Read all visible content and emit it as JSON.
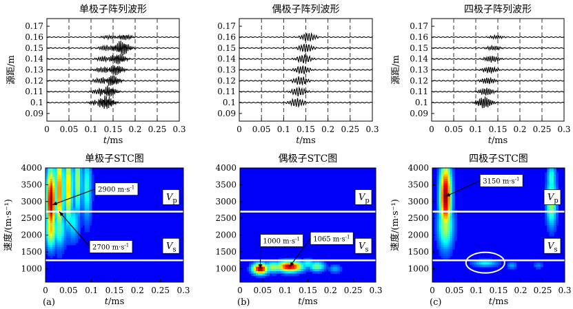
{
  "chart_data": [
    {
      "panel": "top-left",
      "type": "line",
      "title": "单极子阵列波形",
      "xlabel": "t/ms",
      "ylabel": "源距/m",
      "xlim": [
        0,
        0.3
      ],
      "ylim": [
        0.083,
        0.177
      ],
      "x_ticks": [
        "0",
        "0.05",
        "0.1",
        "0.15",
        "0.2",
        "0.25",
        "0.3"
      ],
      "y_ticks": [
        "0.09",
        "0.1",
        "0.11",
        "0.12",
        "0.13",
        "0.14",
        "0.15",
        "0.16",
        "0.17"
      ],
      "grid_x": [
        0.05,
        0.1,
        0.15,
        0.2,
        0.25
      ],
      "series": [
        {
          "offset": 0.1,
          "arrivals": [
            {
              "t": 0.112,
              "a": 0.002,
              "f": 22
            },
            {
              "t": 0.134,
              "a": 0.0065,
              "f": 30
            }
          ]
        },
        {
          "offset": 0.11,
          "arrivals": [
            {
              "t": 0.118,
              "a": 0.0025,
              "f": 22
            },
            {
              "t": 0.14,
              "a": 0.005,
              "f": 28
            }
          ]
        },
        {
          "offset": 0.12,
          "arrivals": [
            {
              "t": 0.122,
              "a": 0.0025,
              "f": 22
            },
            {
              "t": 0.148,
              "a": 0.005,
              "f": 28
            }
          ]
        },
        {
          "offset": 0.13,
          "arrivals": [
            {
              "t": 0.126,
              "a": 0.0025,
              "f": 22
            },
            {
              "t": 0.156,
              "a": 0.005,
              "f": 28
            }
          ]
        },
        {
          "offset": 0.14,
          "arrivals": [
            {
              "t": 0.13,
              "a": 0.0025,
              "f": 22
            },
            {
              "t": 0.162,
              "a": 0.005,
              "f": 28
            }
          ]
        },
        {
          "offset": 0.15,
          "arrivals": [
            {
              "t": 0.135,
              "a": 0.0025,
              "f": 22
            },
            {
              "t": 0.17,
              "a": 0.007,
              "f": 28
            }
          ]
        },
        {
          "offset": 0.16,
          "arrivals": [
            {
              "t": 0.14,
              "a": 0.0015,
              "f": 22
            },
            {
              "t": 0.176,
              "a": 0.0025,
              "f": 26
            }
          ]
        }
      ]
    },
    {
      "panel": "top-middle",
      "type": "line",
      "title": "偶极子阵列波形",
      "xlabel": "t/ms",
      "ylabel": "",
      "xlim": [
        0,
        0.3
      ],
      "ylim": [
        0.083,
        0.177
      ],
      "x_ticks": [
        "0",
        "0.05",
        "0.1",
        "0.15",
        "0.2",
        "0.25",
        "0.3"
      ],
      "y_ticks": [
        "0.09",
        "0.1",
        "0.11",
        "0.12",
        "0.13",
        "0.14",
        "0.15",
        "0.16",
        "0.17"
      ],
      "grid_x": [
        0.05,
        0.1,
        0.15,
        0.2,
        0.25
      ],
      "series": [
        {
          "offset": 0.1,
          "arrivals": [
            {
              "t": 0.13,
              "a": 0.004,
              "f": 18
            }
          ]
        },
        {
          "offset": 0.11,
          "arrivals": [
            {
              "t": 0.134,
              "a": 0.004,
              "f": 18
            }
          ]
        },
        {
          "offset": 0.12,
          "arrivals": [
            {
              "t": 0.138,
              "a": 0.004,
              "f": 18
            }
          ]
        },
        {
          "offset": 0.13,
          "arrivals": [
            {
              "t": 0.142,
              "a": 0.004,
              "f": 18
            }
          ]
        },
        {
          "offset": 0.14,
          "arrivals": [
            {
              "t": 0.146,
              "a": 0.004,
              "f": 18
            }
          ]
        },
        {
          "offset": 0.15,
          "arrivals": [
            {
              "t": 0.15,
              "a": 0.004,
              "f": 18
            }
          ]
        },
        {
          "offset": 0.16,
          "arrivals": [
            {
              "t": 0.156,
              "a": 0.004,
              "f": 18
            }
          ]
        }
      ]
    },
    {
      "panel": "top-right",
      "type": "line",
      "title": "四极子阵列波形",
      "xlabel": "t/ms",
      "ylabel": "源距/m",
      "xlim": [
        0,
        0.3
      ],
      "ylim": [
        0.083,
        0.177
      ],
      "x_ticks": [
        "0",
        "0.05",
        "0.1",
        "0.15",
        "0.2",
        "0.25",
        "0.3"
      ],
      "y_ticks": [
        "0.09",
        "0.1",
        "0.11",
        "0.12",
        "0.13",
        "0.14",
        "0.15",
        "0.16",
        "0.17"
      ],
      "grid_x": [
        0.05,
        0.1,
        0.15,
        0.2,
        0.25
      ],
      "series": [
        {
          "offset": 0.1,
          "arrivals": [
            {
              "t": 0.12,
              "a": 0.0055,
              "f": 24
            }
          ]
        },
        {
          "offset": 0.11,
          "arrivals": [
            {
              "t": 0.124,
              "a": 0.0035,
              "f": 22
            }
          ]
        },
        {
          "offset": 0.12,
          "arrivals": [
            {
              "t": 0.128,
              "a": 0.003,
              "f": 22
            }
          ]
        },
        {
          "offset": 0.13,
          "arrivals": [
            {
              "t": 0.132,
              "a": 0.003,
              "f": 22
            }
          ]
        },
        {
          "offset": 0.14,
          "arrivals": [
            {
              "t": 0.136,
              "a": 0.003,
              "f": 22
            }
          ]
        },
        {
          "offset": 0.15,
          "arrivals": [
            {
              "t": 0.14,
              "a": 0.002,
              "f": 22
            }
          ]
        },
        {
          "offset": 0.16,
          "arrivals": [
            {
              "t": 0.146,
              "a": 0.0015,
              "f": 22
            }
          ]
        }
      ]
    },
    {
      "panel": "bottom-left",
      "type": "heatmap",
      "title": "单极子STC图",
      "xlabel": "t/ms",
      "ylabel": "速度/(m·s⁻¹)",
      "panel_label": "(a)",
      "xlim": [
        0,
        0.3
      ],
      "ylim": [
        600,
        4000
      ],
      "x_ticks": [
        "0",
        "0.05",
        "0.1",
        "0.15",
        "0.2",
        "0.25",
        "0.3"
      ],
      "y_ticks": [
        "1000",
        "1500",
        "2000",
        "2500",
        "3000",
        "3500",
        "4000"
      ],
      "reference_lines": [
        {
          "value": 2700,
          "label_main": "V",
          "label_sub": "p"
        },
        {
          "value": 1250,
          "label_main": "V",
          "label_sub": "s"
        }
      ],
      "annotations": [
        {
          "text": "2900 m·s",
          "sup": "-1",
          "x": 0.015,
          "y": 2900
        },
        {
          "text": "2700 m·s",
          "sup": "-1",
          "x": 0.03,
          "y": 2700
        }
      ],
      "peaks": [
        {
          "x": 0.012,
          "y": 3000,
          "sx": 0.007,
          "sy": 700,
          "a": 1.0
        },
        {
          "x": 0.012,
          "y": 2200,
          "sx": 0.008,
          "sy": 400,
          "a": 0.65
        },
        {
          "x": 0.03,
          "y": 3300,
          "sx": 0.006,
          "sy": 900,
          "a": 0.75
        },
        {
          "x": 0.05,
          "y": 3400,
          "sx": 0.006,
          "sy": 800,
          "a": 0.65
        },
        {
          "x": 0.07,
          "y": 3600,
          "sx": 0.006,
          "sy": 700,
          "a": 0.5
        },
        {
          "x": 0.09,
          "y": 3400,
          "sx": 0.007,
          "sy": 700,
          "a": 0.35
        },
        {
          "x": 0.03,
          "y": 2200,
          "sx": 0.01,
          "sy": 400,
          "a": 0.4
        },
        {
          "x": 0.06,
          "y": 2400,
          "sx": 0.01,
          "sy": 400,
          "a": 0.3
        }
      ]
    },
    {
      "panel": "bottom-middle",
      "type": "heatmap",
      "title": "偶极子STC图",
      "xlabel": "t/ms",
      "ylabel": "",
      "panel_label": "(b)",
      "xlim": [
        0,
        0.3
      ],
      "ylim": [
        600,
        4000
      ],
      "x_ticks": [
        "0",
        "0.05",
        "0.1",
        "0.15",
        "0.2",
        "0.25",
        "0.3"
      ],
      "y_ticks": [
        "1000",
        "1500",
        "2000",
        "2500",
        "3000",
        "3500",
        "4000"
      ],
      "reference_lines": [
        {
          "value": 2700,
          "label_main": "V",
          "label_sub": "p"
        },
        {
          "value": 1250,
          "label_main": "V",
          "label_sub": "s"
        }
      ],
      "annotations": [
        {
          "text": "1000 m·s",
          "sup": "-1",
          "x": 0.045,
          "y": 1000
        },
        {
          "text": "1065 m·s",
          "sup": "-1",
          "x": 0.11,
          "y": 1065
        }
      ],
      "peaks": [
        {
          "x": 0.045,
          "y": 1000,
          "sx": 0.012,
          "sy": 110,
          "a": 1.0
        },
        {
          "x": 0.11,
          "y": 1065,
          "sx": 0.02,
          "sy": 110,
          "a": 0.95
        },
        {
          "x": 0.075,
          "y": 1050,
          "sx": 0.015,
          "sy": 110,
          "a": 0.5
        },
        {
          "x": 0.17,
          "y": 1070,
          "sx": 0.012,
          "sy": 100,
          "a": 0.45
        },
        {
          "x": 0.15,
          "y": 1150,
          "sx": 0.01,
          "sy": 90,
          "a": 0.35
        },
        {
          "x": 0.21,
          "y": 1000,
          "sx": 0.01,
          "sy": 90,
          "a": 0.2
        }
      ]
    },
    {
      "panel": "bottom-right",
      "type": "heatmap",
      "title": "四极子STC图",
      "xlabel": "t/ms",
      "ylabel": "速度/(m·s⁻¹)",
      "panel_label": "(c)",
      "xlim": [
        0,
        0.3
      ],
      "ylim": [
        600,
        4000
      ],
      "x_ticks": [
        "0",
        "0.05",
        "0.1",
        "0.15",
        "0.2",
        "0.25",
        "0.3"
      ],
      "y_ticks": [
        "1000",
        "1500",
        "2000",
        "2500",
        "3000",
        "3500",
        "4000"
      ],
      "reference_lines": [
        {
          "value": 2700,
          "label_main": "V",
          "label_sub": "p"
        },
        {
          "value": 1250,
          "label_main": "V",
          "label_sub": "s"
        }
      ],
      "annotations": [
        {
          "text": "3150 m·s",
          "sup": "-1",
          "x": 0.03,
          "y": 3150
        }
      ],
      "ellipse": {
        "x": 0.12,
        "y": 1180
      },
      "peaks": [
        {
          "x": 0.03,
          "y": 3150,
          "sx": 0.009,
          "sy": 700,
          "a": 1.0
        },
        {
          "x": 0.03,
          "y": 2300,
          "sx": 0.012,
          "sy": 500,
          "a": 0.5
        },
        {
          "x": 0.27,
          "y": 3000,
          "sx": 0.008,
          "sy": 500,
          "a": 0.5
        },
        {
          "x": 0.27,
          "y": 3700,
          "sx": 0.007,
          "sy": 300,
          "a": 0.35
        },
        {
          "x": 0.12,
          "y": 1170,
          "sx": 0.02,
          "sy": 70,
          "a": 0.3
        },
        {
          "x": 0.18,
          "y": 1100,
          "sx": 0.008,
          "sy": 70,
          "a": 0.2
        },
        {
          "x": 0.24,
          "y": 1100,
          "sx": 0.008,
          "sy": 70,
          "a": 0.15
        }
      ]
    }
  ]
}
